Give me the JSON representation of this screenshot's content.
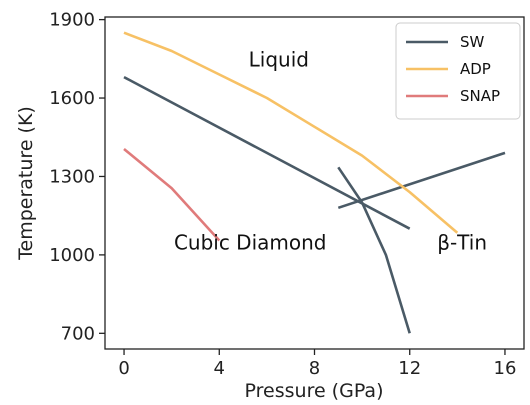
{
  "chart_data": {
    "type": "line",
    "title": "",
    "xlabel": "Pressure (GPa)",
    "ylabel": "Temperature (K)",
    "xlim": [
      -0.8,
      16.8
    ],
    "ylim": [
      640,
      1910
    ],
    "xticks": [
      0,
      4,
      8,
      12,
      16
    ],
    "yticks": [
      700,
      1000,
      1300,
      1600,
      1900
    ],
    "xtick_labels": [
      "0",
      "4",
      "8",
      "12",
      "16"
    ],
    "ytick_labels": [
      "700",
      "1000",
      "1300",
      "1600",
      "1900"
    ],
    "grid": false,
    "legend_position": "top-right",
    "series": [
      {
        "name": "SW",
        "color": "#4a5a66",
        "segments": [
          [
            {
              "x": 0,
              "y": 1680
            },
            {
              "x": 12,
              "y": 1100
            }
          ],
          [
            {
              "x": 9,
              "y": 1180
            },
            {
              "x": 16,
              "y": 1390
            }
          ],
          [
            {
              "x": 9,
              "y": 1335
            },
            {
              "x": 10,
              "y": 1200
            },
            {
              "x": 11,
              "y": 1000
            },
            {
              "x": 12,
              "y": 700
            }
          ]
        ]
      },
      {
        "name": "ADP",
        "color": "#f7c165",
        "segments": [
          [
            {
              "x": 0,
              "y": 1850
            },
            {
              "x": 2,
              "y": 1780
            },
            {
              "x": 4,
              "y": 1690
            },
            {
              "x": 6,
              "y": 1600
            },
            {
              "x": 8,
              "y": 1490
            },
            {
              "x": 10,
              "y": 1380
            },
            {
              "x": 12,
              "y": 1240
            },
            {
              "x": 14,
              "y": 1085
            }
          ]
        ]
      },
      {
        "name": "SNAP",
        "color": "#e07b7b",
        "segments": [
          [
            {
              "x": 0,
              "y": 1405
            },
            {
              "x": 2,
              "y": 1255
            },
            {
              "x": 4,
              "y": 1055
            }
          ]
        ]
      }
    ],
    "annotations": [
      {
        "text": "Liquid",
        "x": 6.5,
        "y": 1720
      },
      {
        "text": "Cubic Diamond",
        "x": 5.3,
        "y": 1020
      },
      {
        "text": "β-Tin",
        "x": 14.2,
        "y": 1020
      }
    ]
  }
}
